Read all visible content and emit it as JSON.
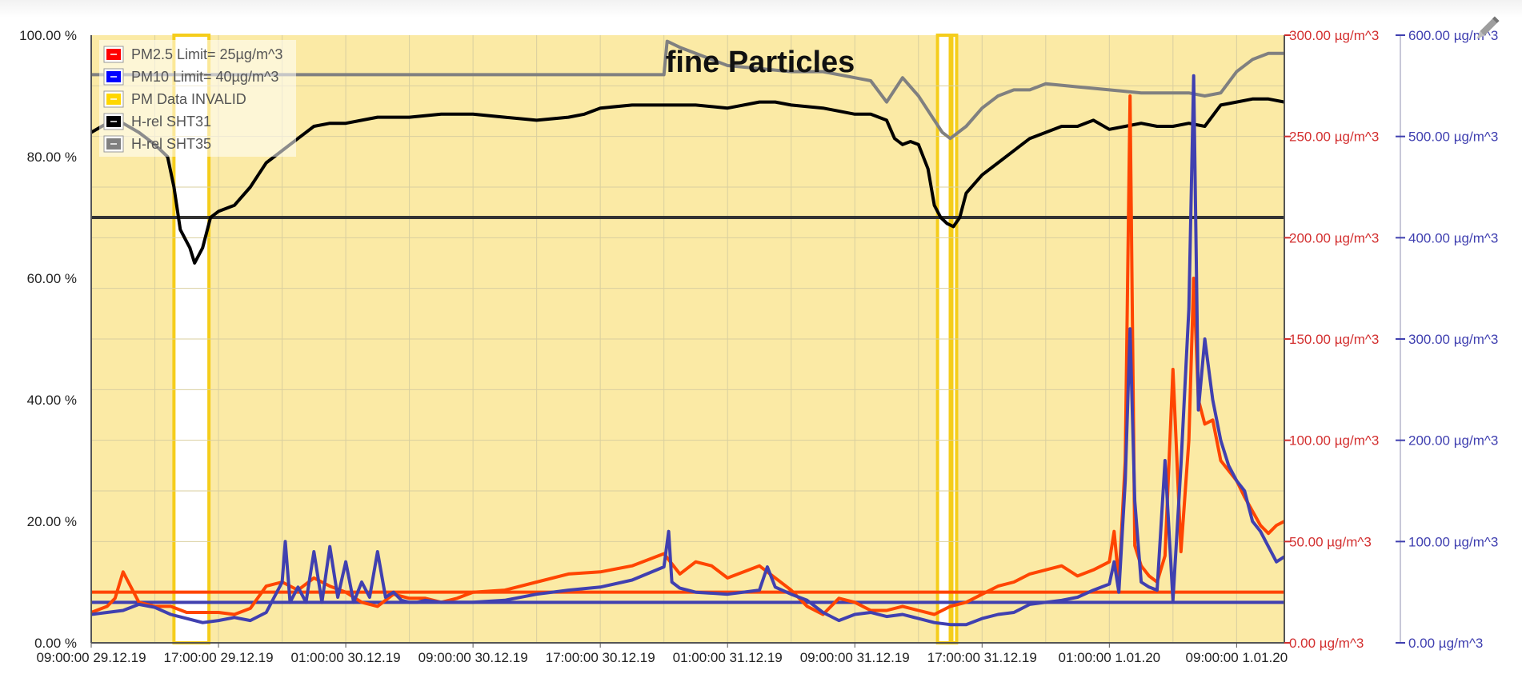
{
  "chart_data": {
    "type": "line",
    "title": "fine Particles",
    "x_ticks": [
      "09:00:00 29.12.19",
      "17:00:00 29.12.19",
      "01:00:00 30.12.19",
      "09:00:00 30.12.19",
      "17:00:00 30.12.19",
      "01:00:00 31.12.19",
      "09:00:00 31.12.19",
      "17:00:00 31.12.19",
      "01:00:00 1.01.20",
      "09:00:00 1.01.20"
    ],
    "x_range_hours": [
      0,
      75
    ],
    "y_left": {
      "ticks": [
        "100.00 %",
        "80.00 %",
        "60.00 %",
        "40.00 %",
        "20.00 %",
        "0.00 %"
      ],
      "range": [
        0,
        100
      ],
      "unit": "%"
    },
    "y_right1": {
      "ticks": [
        "300.00 µg/m^3",
        "250.00 µg/m^3",
        "200.00 µg/m^3",
        "150.00 µg/m^3",
        "100.00 µg/m^3",
        "50.00 µg/m^3",
        "0.00 µg/m^3"
      ],
      "range": [
        0,
        300
      ],
      "color": "#d32f2f"
    },
    "y_right2": {
      "ticks": [
        "600.00 µg/m^3",
        "500.00 µg/m^3",
        "400.00 µg/m^3",
        "300.00 µg/m^3",
        "200.00 µg/m^3",
        "100.00 µg/m^3",
        "0.00 µg/m^3"
      ],
      "range": [
        0,
        600
      ],
      "color": "#3f3fb0"
    },
    "legend_position": "top-left",
    "grid": true,
    "legend": [
      {
        "label": "PM2.5 Limit= 25µg/m^3",
        "color": "#ff0000"
      },
      {
        "label": "PM10 Limit= 40µg/m^3",
        "color": "#0000ff"
      },
      {
        "label": "PM Data INVALID",
        "color": "#ffd700"
      },
      {
        "label": "H-rel SHT31",
        "color": "#000000"
      },
      {
        "label": "H-rel SHT35",
        "color": "#808080"
      }
    ],
    "reference_lines": [
      {
        "name": "PM2.5 Limit",
        "axis": "right1",
        "value": 25,
        "color": "#ff4500"
      },
      {
        "name": "PM10 Limit",
        "axis": "right2",
        "value": 40,
        "color": "#4040b0"
      },
      {
        "name": "H-rel threshold",
        "axis": "left",
        "value": 70,
        "color": "#333333"
      }
    ],
    "invalid_periods_hours": [
      [
        5.2,
        7.4
      ],
      [
        53.2,
        54.0
      ],
      [
        54.1,
        54.4
      ]
    ],
    "series": [
      {
        "name": "H-rel SHT31",
        "axis": "left",
        "color": "#000000",
        "x": [
          0,
          1,
          2,
          3,
          4,
          4.8,
          5.2,
          5.6,
          6.0,
          6.2,
          6.5,
          7,
          7.5,
          8,
          9,
          10,
          10.5,
          11,
          12,
          13,
          14,
          15,
          16,
          17,
          18,
          20,
          22,
          24,
          26,
          28,
          30,
          31,
          32,
          34,
          36,
          38,
          40,
          42,
          43,
          44,
          46,
          48,
          49,
          50,
          50.5,
          51,
          51.5,
          52,
          52.6,
          53.0,
          53.4,
          53.8,
          54.2,
          54.6,
          55,
          56,
          57,
          58,
          59,
          60,
          61,
          62,
          63,
          64,
          65,
          66,
          67,
          68,
          69,
          70,
          71,
          72,
          73,
          74,
          75
        ],
        "y": [
          84,
          85.5,
          85.5,
          84,
          82,
          80,
          75,
          68,
          66,
          65,
          62.5,
          65,
          70,
          71,
          72,
          75,
          77,
          79,
          81,
          83,
          85,
          85.5,
          85.5,
          86,
          86.5,
          86.5,
          87,
          87,
          86.5,
          86,
          86.5,
          87,
          88,
          88.5,
          88.5,
          88.5,
          88,
          89,
          89,
          88.5,
          88,
          87,
          87,
          86,
          83,
          82,
          82.5,
          82,
          78,
          72,
          70,
          69,
          68.5,
          70,
          74,
          77,
          79,
          81,
          83,
          84,
          85,
          85,
          86,
          84.5,
          85,
          85.5,
          85,
          85,
          85.5,
          85,
          88.5,
          89,
          89.5,
          89.5,
          89
        ]
      },
      {
        "name": "H-rel SHT35",
        "axis": "left",
        "color": "#808080",
        "x": [
          0,
          6,
          10,
          12,
          15,
          20,
          25,
          30,
          36,
          36.2,
          37,
          38,
          39,
          40,
          42,
          44,
          46,
          48,
          49,
          50,
          51,
          52,
          53,
          53.5,
          54,
          55,
          56,
          57,
          58,
          59,
          60,
          62,
          64,
          66,
          68,
          69,
          70,
          71,
          72,
          73,
          74,
          75
        ],
        "y": [
          93.5,
          93.5,
          93.5,
          93.5,
          93.5,
          93.5,
          93.5,
          93.5,
          93.5,
          99,
          98,
          97,
          96,
          95,
          94.5,
          94,
          94,
          93,
          92.5,
          89,
          93,
          90,
          86,
          84,
          83,
          85,
          88,
          90,
          91,
          91,
          92,
          91.5,
          91,
          90.5,
          90.5,
          90.5,
          90,
          90.5,
          94,
          96,
          97,
          97
        ]
      },
      {
        "name": "PM2.5",
        "axis": "right1",
        "color": "#ff4500",
        "x": [
          0,
          1,
          1.5,
          2,
          3,
          4,
          5,
          6,
          7,
          8,
          9,
          10,
          11,
          12,
          13,
          14,
          15,
          16,
          17,
          18,
          19,
          20,
          21,
          22,
          23,
          24,
          26,
          28,
          30,
          32,
          34,
          36,
          37,
          38,
          39,
          40,
          42,
          44,
          45,
          46,
          47,
          48,
          49,
          50,
          51,
          52,
          53,
          54,
          55,
          56,
          57,
          58,
          59,
          60,
          61,
          62,
          63,
          64,
          64.3,
          64.6,
          65,
          65.3,
          65.6,
          66,
          66.5,
          67,
          67.5,
          68,
          68.5,
          69,
          69.3,
          69.6,
          70,
          70.5,
          71,
          71.5,
          72,
          72.5,
          73,
          73.5,
          74,
          74.5,
          75
        ],
        "y": [
          15,
          18,
          22,
          35,
          20,
          18,
          18,
          15,
          15,
          15,
          14,
          17,
          28,
          30,
          26,
          32,
          28,
          25,
          20,
          18,
          24,
          22,
          22,
          20,
          22,
          25,
          26,
          30,
          34,
          35,
          38,
          44,
          34,
          40,
          38,
          32,
          38,
          26,
          18,
          14,
          22,
          20,
          16,
          16,
          18,
          16,
          14,
          18,
          20,
          24,
          28,
          30,
          34,
          36,
          38,
          33,
          36,
          40,
          55,
          30,
          90,
          270,
          48,
          38,
          33,
          30,
          43,
          135,
          45,
          100,
          180,
          120,
          108,
          110,
          90,
          85,
          80,
          72,
          65,
          58,
          54,
          58,
          60
        ]
      },
      {
        "name": "PM10",
        "axis": "right2",
        "color": "#4040b0",
        "x": [
          0,
          1,
          2,
          3,
          4,
          5,
          6,
          7,
          8,
          9,
          10,
          11,
          12,
          12.2,
          12.5,
          13,
          13.5,
          14,
          14.5,
          15,
          15.5,
          16,
          16.5,
          17,
          17.5,
          18,
          18.5,
          19,
          19.5,
          20,
          20.5,
          21,
          22,
          24,
          26,
          28,
          30,
          32,
          34,
          36,
          36.3,
          36.5,
          37,
          38,
          40,
          42,
          42.5,
          43,
          44,
          45,
          46,
          47,
          48,
          49,
          50,
          51,
          52,
          53,
          54,
          55,
          56,
          57,
          58,
          59,
          60,
          61,
          62,
          63,
          64,
          64.3,
          64.6,
          65,
          65.3,
          65.6,
          66,
          66.5,
          67,
          67.5,
          68,
          68.5,
          69,
          69.3,
          69.6,
          70,
          70.5,
          71,
          71.5,
          72,
          72.5,
          73,
          73.5,
          74,
          74.5,
          75
        ],
        "y": [
          28,
          30,
          32,
          38,
          35,
          28,
          24,
          20,
          22,
          25,
          22,
          30,
          60,
          100,
          40,
          55,
          40,
          90,
          40,
          95,
          45,
          80,
          40,
          60,
          45,
          90,
          45,
          50,
          42,
          40,
          40,
          42,
          40,
          40,
          42,
          48,
          52,
          55,
          62,
          75,
          110,
          60,
          54,
          50,
          48,
          52,
          75,
          55,
          48,
          42,
          30,
          22,
          28,
          30,
          26,
          28,
          24,
          20,
          18,
          18,
          24,
          28,
          30,
          38,
          40,
          42,
          45,
          52,
          58,
          80,
          50,
          160,
          310,
          140,
          60,
          55,
          52,
          180,
          42,
          175,
          330,
          560,
          230,
          300,
          240,
          200,
          175,
          160,
          150,
          120,
          110,
          95,
          80,
          85
        ]
      }
    ]
  }
}
